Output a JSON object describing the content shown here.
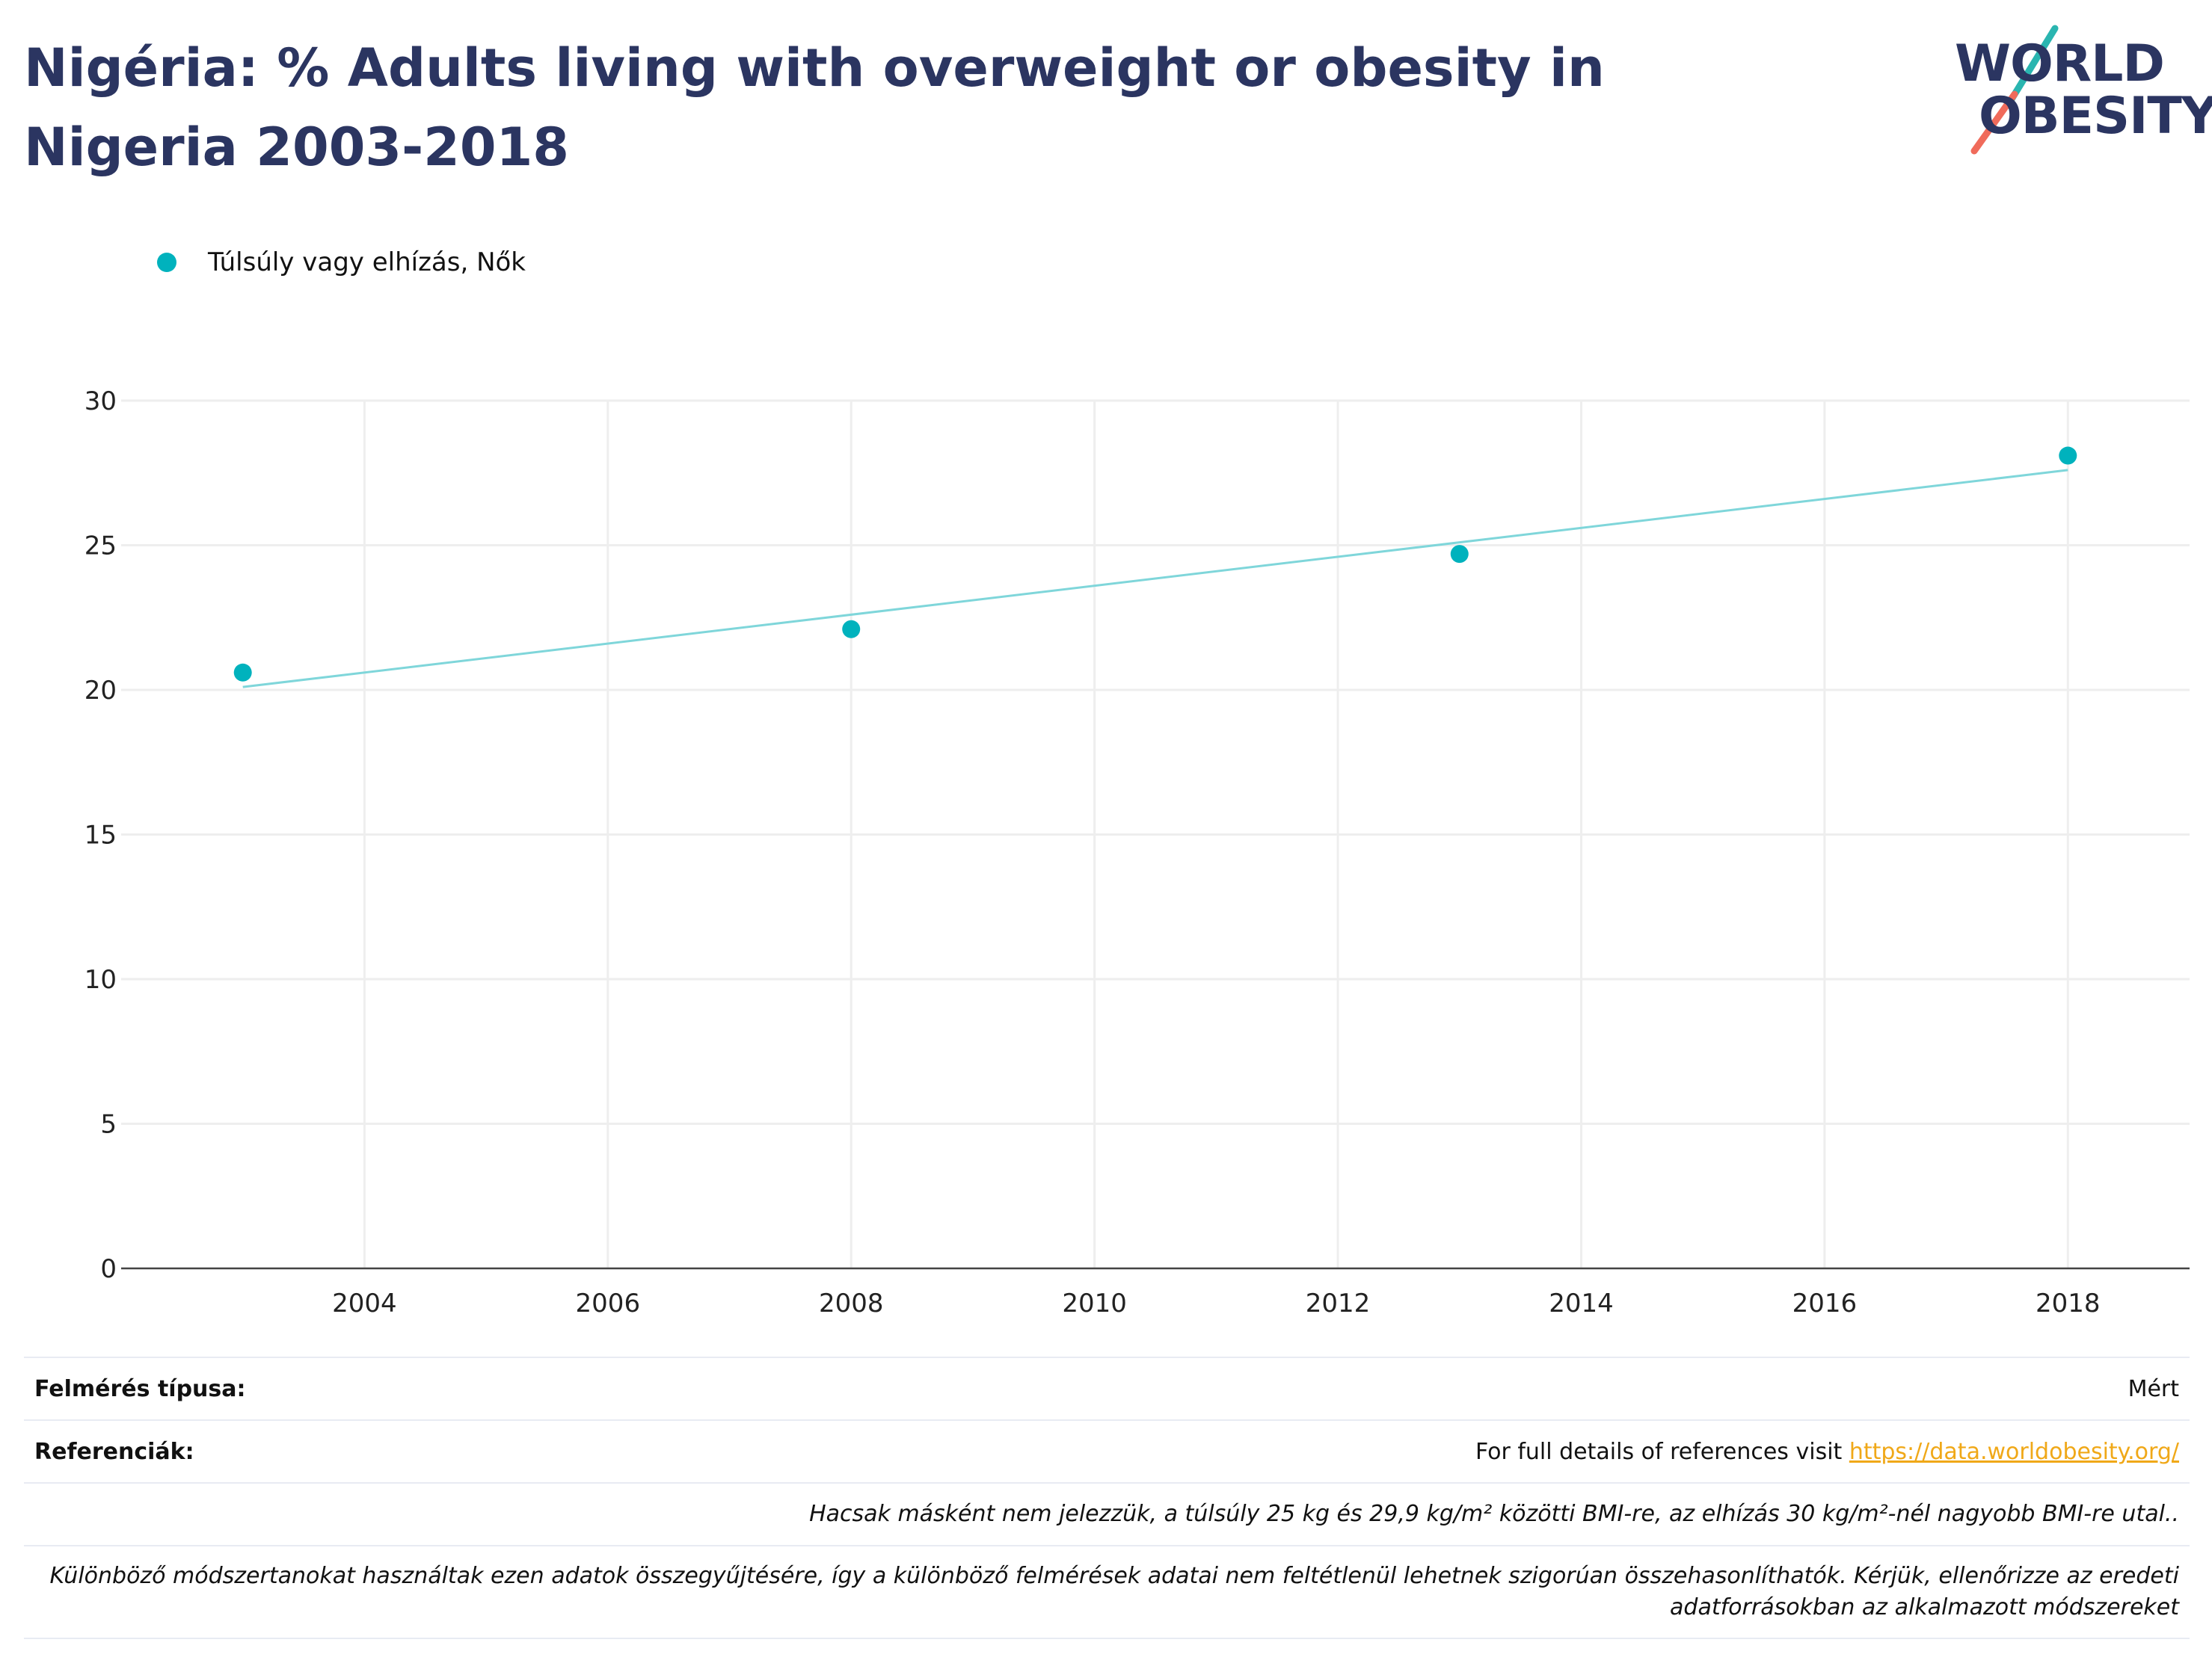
{
  "title": "Nigéria: % Adults living with overweight or obesity in Nigeria 2003-2018",
  "logo": {
    "line1": "WORLD",
    "line2": "OBESITY",
    "accent_teal": "#2ab5b0",
    "accent_coral": "#f06b5b"
  },
  "legend": {
    "label": "Túlsúly vagy elhízás, Nők",
    "color": "#00b2bd"
  },
  "chart_data": {
    "type": "scatter",
    "series": [
      {
        "name": "Túlsúly vagy elhízás, Nők",
        "x": [
          2003,
          2008,
          2013,
          2018
        ],
        "y": [
          20.6,
          22.1,
          24.7,
          28.1
        ]
      }
    ],
    "trendline": {
      "x": [
        2003,
        2018
      ],
      "y": [
        20.1,
        27.6
      ],
      "color": "#7fd6da"
    },
    "xlim": [
      2002,
      2019
    ],
    "ylim": [
      0,
      30
    ],
    "xticks": [
      2004,
      2006,
      2008,
      2010,
      2012,
      2014,
      2016,
      2018
    ],
    "yticks": [
      0,
      5,
      10,
      15,
      20,
      25,
      30
    ],
    "grid": true,
    "xlabel": "",
    "ylabel": "",
    "point_color": "#00b2bd"
  },
  "footer": {
    "survey_label": "Felmérés típusa:",
    "survey_value": "Mért",
    "ref_label": "Referenciák:",
    "ref_text": "For full details of references visit ",
    "ref_link": "https://data.worldobesity.org/",
    "note1": "Hacsak másként nem jelezzük, a túlsúly 25 kg és 29,9 kg/m² közötti BMI-re, az elhízás 30 kg/m²-nél nagyobb BMI-re utal..",
    "note2": "Különböző módszertanokat használtak ezen adatok összegyűjtésére, így a különböző felmérések adatai nem feltétlenül lehetnek szigorúan összehasonlíthatók. Kérjük, ellenőrizze az eredeti adatforrásokban az alkalmazott módszereket"
  }
}
